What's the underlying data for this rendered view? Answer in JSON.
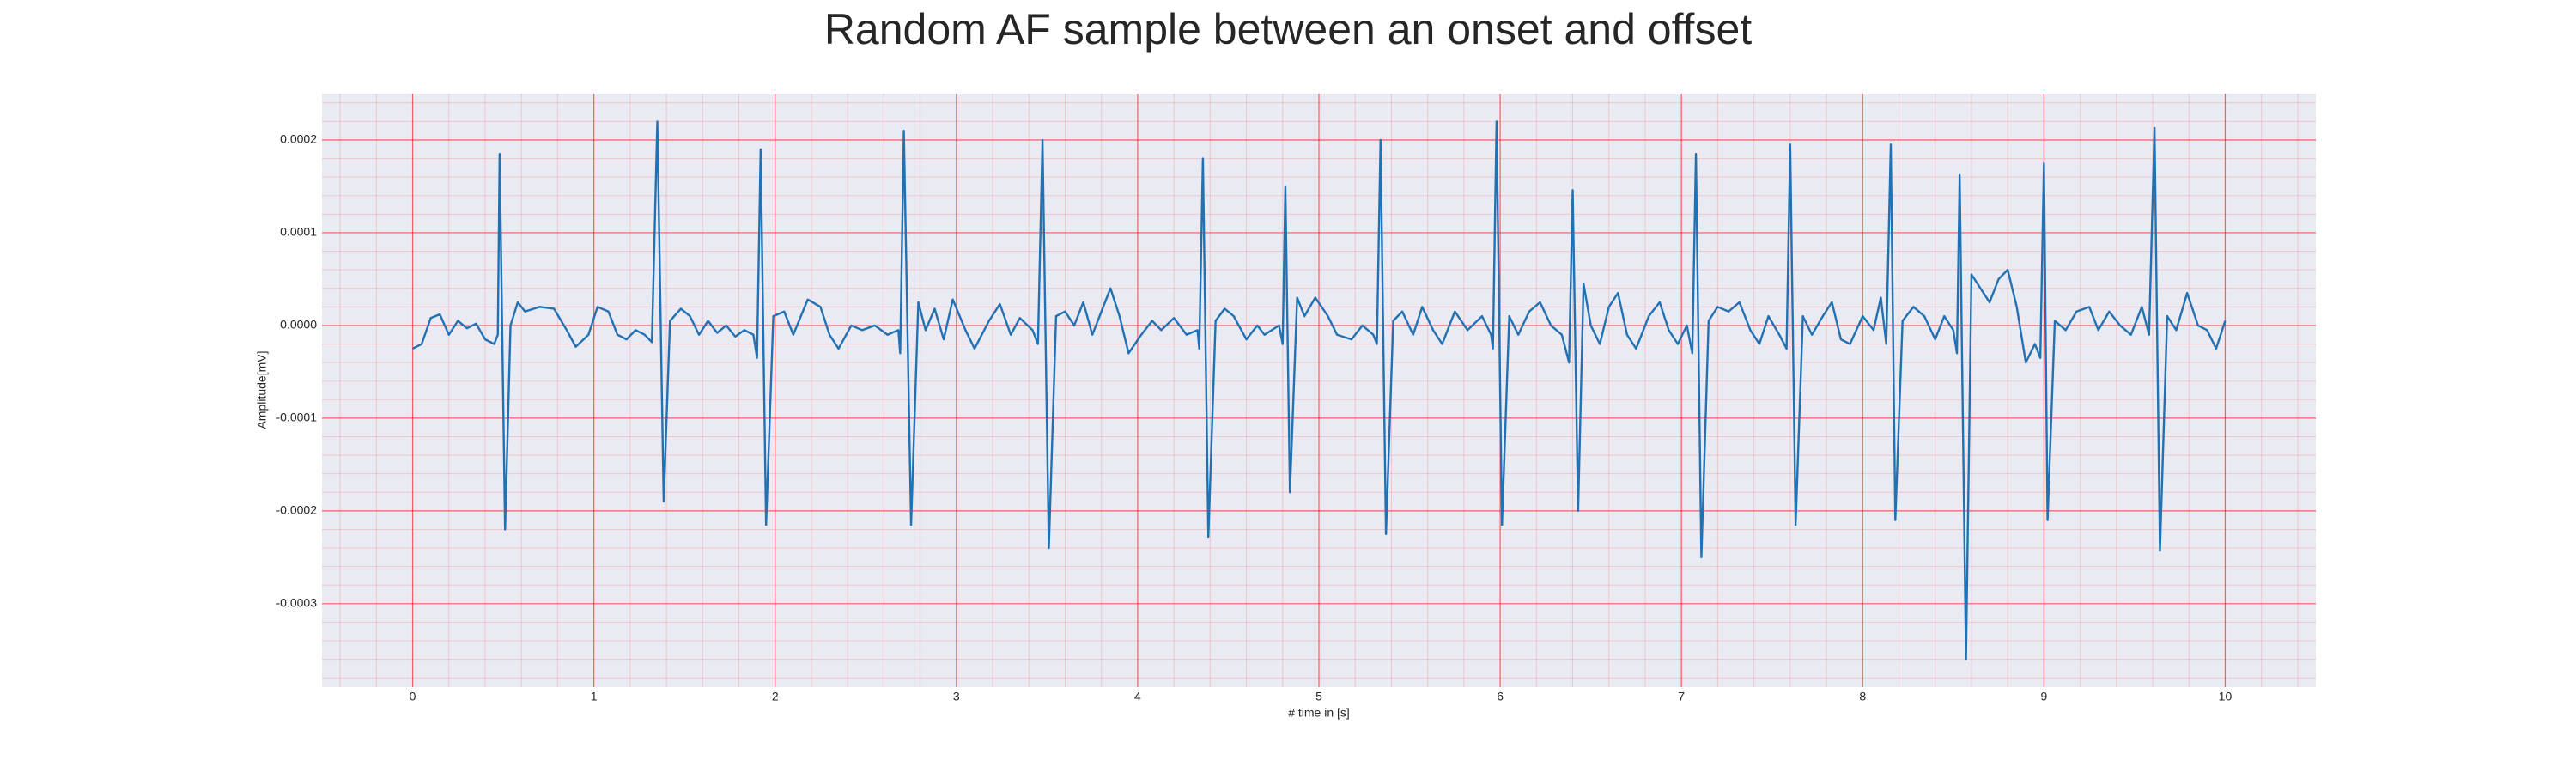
{
  "chart_data": {
    "type": "line",
    "title": "Random AF sample between an onset and offset",
    "xlabel": "# time in [s]",
    "ylabel": "Amplitude[mV]",
    "color": "#2271b3",
    "grid": true,
    "minor_grid": true,
    "xlim": [
      -0.5,
      10.5
    ],
    "ylim": [
      -0.00039,
      0.00025
    ],
    "xticks": [
      0,
      1,
      2,
      3,
      4,
      5,
      6,
      7,
      8,
      9,
      10
    ],
    "yticks": [
      0.0002,
      0.0001,
      {
        "value": 0,
        "label": "0.0000"
      },
      -0.0001,
      -0.0002,
      -0.0003
    ],
    "x": [
      0,
      0.05,
      0.1,
      0.15,
      0.2,
      0.25,
      0.3,
      0.35,
      0.4,
      0.45,
      0.47,
      0.48,
      0.51,
      0.54,
      0.58,
      0.62,
      0.7,
      0.78,
      0.85,
      0.9,
      0.97,
      1.02,
      1.08,
      1.13,
      1.18,
      1.23,
      1.28,
      1.32,
      1.35,
      1.385,
      1.42,
      1.48,
      1.53,
      1.58,
      1.63,
      1.68,
      1.73,
      1.78,
      1.83,
      1.88,
      1.9,
      1.92,
      1.95,
      1.99,
      2.05,
      2.1,
      2.18,
      2.25,
      2.3,
      2.35,
      2.42,
      2.48,
      2.55,
      2.62,
      2.68,
      2.69,
      2.71,
      2.75,
      2.79,
      2.83,
      2.88,
      2.93,
      2.98,
      3.05,
      3.1,
      3.18,
      3.24,
      3.3,
      3.35,
      3.42,
      3.45,
      3.475,
      3.51,
      3.55,
      3.6,
      3.65,
      3.7,
      3.75,
      3.8,
      3.85,
      3.9,
      3.95,
      4.02,
      4.08,
      4.13,
      4.2,
      4.27,
      4.33,
      4.34,
      4.36,
      4.39,
      4.43,
      4.48,
      4.53,
      4.6,
      4.66,
      4.7,
      4.78,
      4.8,
      4.815,
      4.84,
      4.88,
      4.92,
      4.98,
      5.05,
      5.1,
      5.18,
      5.24,
      5.3,
      5.32,
      5.34,
      5.37,
      5.41,
      5.46,
      5.52,
      5.57,
      5.63,
      5.68,
      5.75,
      5.82,
      5.9,
      5.95,
      5.96,
      5.98,
      6.01,
      6.05,
      6.1,
      6.16,
      6.22,
      6.28,
      6.34,
      6.38,
      6.4,
      6.43,
      6.46,
      6.5,
      6.55,
      6.6,
      6.65,
      6.7,
      6.75,
      6.82,
      6.88,
      6.93,
      6.98,
      7.03,
      7.06,
      7.08,
      7.11,
      7.15,
      7.2,
      7.26,
      7.32,
      7.38,
      7.43,
      7.48,
      7.54,
      7.58,
      7.6,
      7.63,
      7.67,
      7.72,
      7.78,
      7.83,
      7.88,
      7.93,
      8.0,
      8.06,
      8.1,
      8.13,
      8.155,
      8.18,
      8.22,
      8.28,
      8.34,
      8.4,
      8.45,
      8.5,
      8.52,
      8.535,
      8.57,
      8.6,
      8.65,
      8.7,
      8.75,
      8.8,
      8.85,
      8.9,
      8.95,
      8.98,
      9.0,
      9.02,
      9.06,
      9.12,
      9.18,
      9.25,
      9.3,
      9.36,
      9.42,
      9.48,
      9.54,
      9.58,
      9.61,
      9.64,
      9.68,
      9.73,
      9.79,
      9.85,
      9.9,
      9.95,
      10
    ],
    "values": [
      -2.5e-05,
      -2e-05,
      8e-06,
      1.2e-05,
      -1e-05,
      5e-06,
      -3e-06,
      2e-06,
      -1.5e-05,
      -2e-05,
      -1e-05,
      0.000185,
      -0.00022,
      0,
      2.5e-05,
      1.5e-05,
      2e-05,
      1.8e-05,
      -5e-06,
      -2.3e-05,
      -1e-05,
      2e-05,
      1.5e-05,
      -1e-05,
      -1.5e-05,
      -5e-06,
      -1e-05,
      -1.8e-05,
      0.00022,
      -0.00019,
      5e-06,
      1.8e-05,
      1e-05,
      -1e-05,
      5e-06,
      -8e-06,
      0,
      -1.2e-05,
      -5e-06,
      -1e-05,
      -3.5e-05,
      0.00019,
      -0.000215,
      1e-05,
      1.5e-05,
      -1e-05,
      2.8e-05,
      2e-05,
      -1e-05,
      -2.5e-05,
      0,
      -5e-06,
      0,
      -1e-05,
      -5e-06,
      -3e-05,
      0.00021,
      -0.000215,
      2.5e-05,
      -5e-06,
      1.8e-05,
      -1.5e-05,
      2.8e-05,
      -5e-06,
      -2.5e-05,
      5e-06,
      2.3e-05,
      -1e-05,
      8e-06,
      -5e-06,
      -2e-05,
      0.0002,
      -0.00024,
      1e-05,
      1.5e-05,
      0,
      2.5e-05,
      -1e-05,
      1.5e-05,
      4e-05,
      1e-05,
      -3e-05,
      -1e-05,
      5e-06,
      -5e-06,
      8e-06,
      -1e-05,
      -5e-06,
      -2.5e-05,
      0.00018,
      -0.000228,
      5e-06,
      1.8e-05,
      1e-05,
      -1.5e-05,
      0,
      -1e-05,
      0,
      -2e-05,
      0.00015,
      -0.00018,
      3e-05,
      1e-05,
      3e-05,
      1e-05,
      -1e-05,
      -1.5e-05,
      0,
      -1e-05,
      -2e-05,
      0.0002,
      -0.000225,
      5e-06,
      1.5e-05,
      -1e-05,
      2e-05,
      -5e-06,
      -2e-05,
      1.5e-05,
      -5e-06,
      1e-05,
      -1e-05,
      -2.5e-05,
      0.00022,
      -0.000215,
      1e-05,
      -1e-05,
      1.5e-05,
      2.5e-05,
      0,
      -1e-05,
      -4e-05,
      0.000146,
      -0.0002,
      4.5e-05,
      0,
      -2e-05,
      2e-05,
      3.5e-05,
      -1e-05,
      -2.5e-05,
      1e-05,
      2.5e-05,
      -5e-06,
      -2e-05,
      0,
      -3e-05,
      0.000185,
      -0.00025,
      5e-06,
      2e-05,
      1.5e-05,
      2.5e-05,
      -5e-06,
      -2e-05,
      1e-05,
      -1e-05,
      -2.5e-05,
      0.000195,
      -0.000215,
      1e-05,
      -1e-05,
      1e-05,
      2.5e-05,
      -1.5e-05,
      -2e-05,
      1e-05,
      -5e-06,
      3e-05,
      -2e-05,
      0.000195,
      -0.00021,
      5e-06,
      2e-05,
      1e-05,
      -1.5e-05,
      1e-05,
      -5e-06,
      -3e-05,
      0.000162,
      -0.00036,
      5.5e-05,
      4e-05,
      2.5e-05,
      5e-05,
      6e-05,
      2e-05,
      -4e-05,
      -2e-05,
      -3.5e-05,
      0.000175,
      -0.00021,
      5e-06,
      -5e-06,
      1.5e-05,
      2e-05,
      -5e-06,
      1.5e-05,
      0,
      -1e-05,
      2e-05,
      -1e-05,
      0.000213,
      -0.000243,
      1e-05,
      -5e-06,
      3.5e-05,
      0,
      -5e-06,
      -2.5e-05,
      5e-06
    ]
  }
}
